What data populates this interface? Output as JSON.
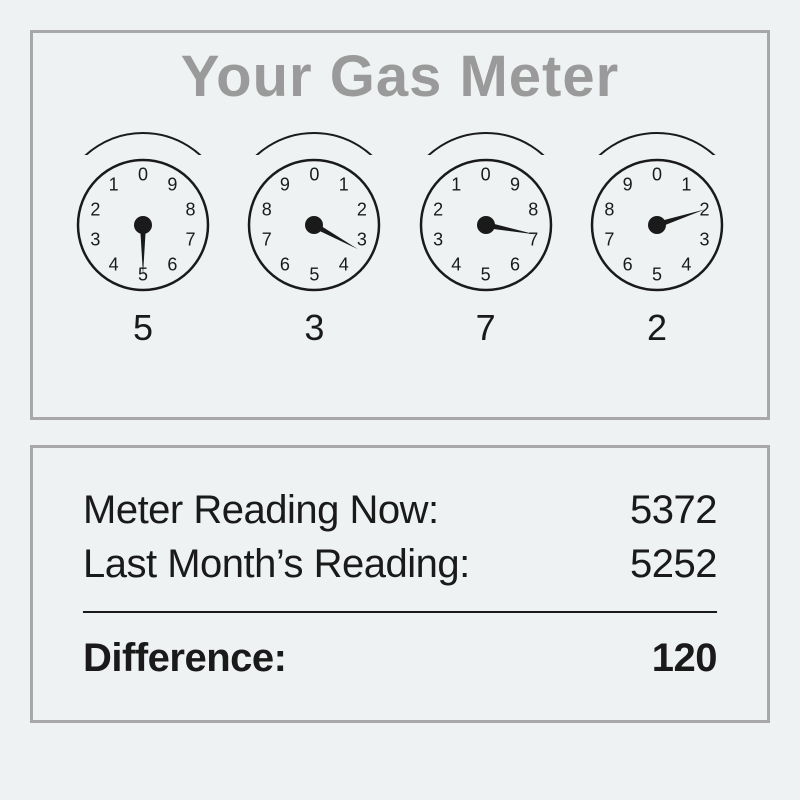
{
  "title": "Your Gas Meter",
  "dial_colors": {
    "stroke": "#1a1a1a",
    "fill": "none",
    "hub": "#1a1a1a"
  },
  "dial_face": {
    "radius": 65,
    "number_radius": 50,
    "hub_radius": 9,
    "hand_length": 50,
    "hand_width": 6,
    "stroke_width": 2.5
  },
  "digits": [
    "0",
    "1",
    "2",
    "3",
    "4",
    "5",
    "6",
    "7",
    "8",
    "9"
  ],
  "dials": [
    {
      "direction": "ccw",
      "value": 5,
      "reading": "5"
    },
    {
      "direction": "cw",
      "value": 3.3,
      "reading": "3"
    },
    {
      "direction": "ccw",
      "value": 7.2,
      "reading": "7"
    },
    {
      "direction": "cw",
      "value": 2,
      "reading": "2"
    }
  ],
  "summary": {
    "now_label": "Meter Reading Now:",
    "now_value": "5372",
    "last_label": "Last Month’s Reading:",
    "last_value": "5252",
    "diff_label": "Difference:",
    "diff_value": "120"
  }
}
